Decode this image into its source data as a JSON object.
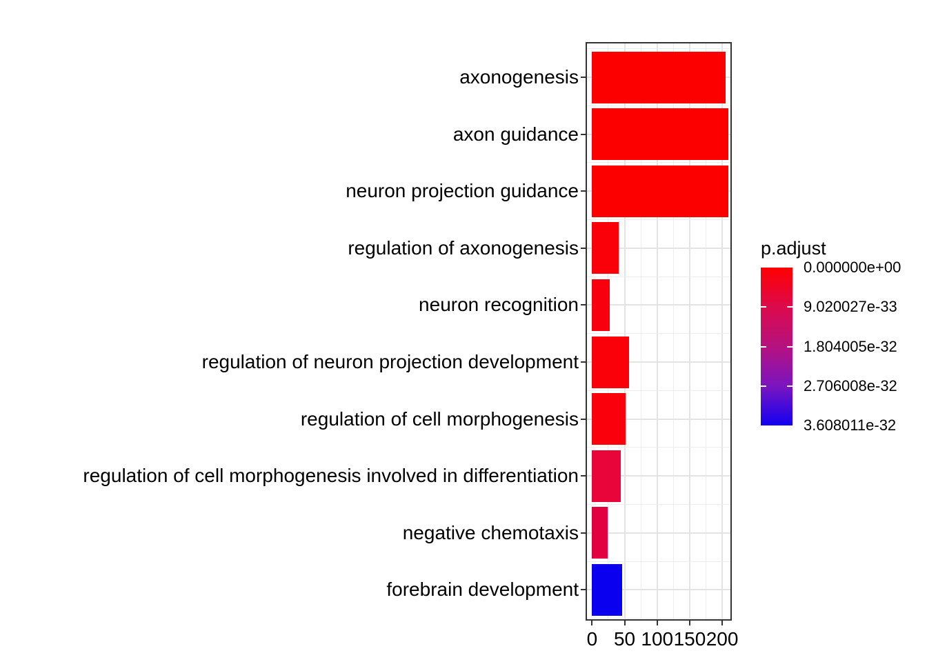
{
  "chart_data": {
    "type": "bar",
    "orientation": "horizontal",
    "title": "",
    "xlabel": "",
    "ylabel": "",
    "x_ticks": [
      0,
      50,
      100,
      150,
      200
    ],
    "x_minor_ticks": [
      25,
      75,
      125,
      175
    ],
    "xlim": [
      -7.8,
      212.6
    ],
    "grid": true,
    "legend_position": "right",
    "categories": [
      "axonogenesis",
      "axon guidance",
      "neuron projection guidance",
      "regulation of axonogenesis",
      "neuron recognition",
      "regulation of neuron projection development",
      "regulation of cell morphogenesis",
      "regulation of cell morphogenesis involved in differentiation",
      "negative chemotaxis",
      "forebrain development"
    ],
    "bars": [
      {
        "label": "axonogenesis",
        "value": 205,
        "color": "#FC0000"
      },
      {
        "label": "axon guidance",
        "value": 209,
        "color": "#FC0000"
      },
      {
        "label": "neuron projection guidance",
        "value": 209,
        "color": "#FC0000"
      },
      {
        "label": "regulation of axonogenesis",
        "value": 41,
        "color": "#FA0009"
      },
      {
        "label": "neuron recognition",
        "value": 27,
        "color": "#F9000E"
      },
      {
        "label": "regulation of neuron projection development",
        "value": 57,
        "color": "#FA0009"
      },
      {
        "label": "regulation of cell morphogenesis",
        "value": 52,
        "color": "#FA000C"
      },
      {
        "label": "regulation of cell morphogenesis involved in differentiation",
        "value": 44,
        "color": "#E7053A"
      },
      {
        "label": "negative chemotaxis",
        "value": 24,
        "color": "#E30040"
      },
      {
        "label": "forebrain development",
        "value": 46,
        "color": "#0A00EF"
      }
    ],
    "legend": {
      "title": "p.adjust",
      "tick_labels": [
        "0.000000e+00",
        "9.020027e-33",
        "1.804005e-32",
        "2.706008e-32",
        "3.608011e-32"
      ],
      "gradient_stops": [
        "#FF0000",
        "#DC0A4C",
        "#B5127F",
        "#7B15BF",
        "#1201F0"
      ]
    },
    "colors": {
      "high_color": "#FF0000",
      "low_color": "#1201F0",
      "panel_border": "#333333",
      "grid_major": "#e3e3e3",
      "grid_minor": "#ededed",
      "text": "#000000"
    }
  }
}
